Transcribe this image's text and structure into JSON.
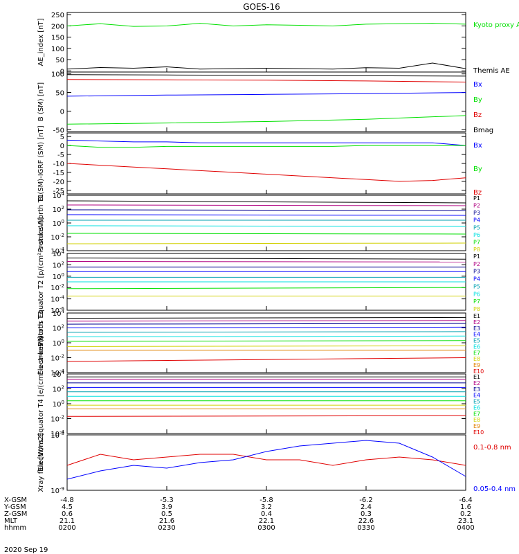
{
  "title": "GOES-16",
  "date": "2020 Sep 19",
  "colors": {
    "black": "#000000",
    "blue": "#0000ff",
    "green": "#00e000",
    "red": "#e00000",
    "navy": "#000090",
    "teal": "#00a0b0",
    "cyan": "#00e0e0",
    "lime": "#00e000",
    "yellow": "#d0d000",
    "orange": "#e08000",
    "darkred": "#b00000",
    "magenta": "#b00080"
  },
  "ephemeris": {
    "rows": [
      {
        "label": "X-GSM",
        "values": [
          "-4.8",
          "-5.3",
          "-5.8",
          "-6.2",
          "-6.4"
        ]
      },
      {
        "label": "Y-GSM",
        "values": [
          "4.5",
          "3.9",
          "3.2",
          "2.4",
          "1.6"
        ]
      },
      {
        "label": "Z-GSM",
        "values": [
          "0.6",
          "0.5",
          "0.4",
          "0.3",
          "0.2"
        ]
      },
      {
        "label": "MLT",
        "values": [
          "21.1",
          "21.6",
          "22.1",
          "22.6",
          "23.1"
        ]
      },
      {
        "label": "hhmm",
        "values": [
          "0200",
          "0230",
          "0300",
          "0330",
          "0400"
        ]
      }
    ]
  },
  "chart_data": [
    {
      "type": "line",
      "ylabel": "AE_index [nT]",
      "ylim": [
        -5,
        260
      ],
      "scale": "linear",
      "yticks": [
        "250",
        "200",
        "150",
        "100",
        "50",
        "0"
      ],
      "x": [
        0,
        10,
        20,
        30,
        40,
        50,
        60,
        70,
        80,
        90,
        100,
        110,
        120
      ],
      "series": [
        {
          "name": "Kyoto proxy AE",
          "color": "#00e000",
          "values": [
            200,
            210,
            198,
            200,
            212,
            200,
            205,
            203,
            200,
            208,
            210,
            212,
            208
          ]
        },
        {
          "name": "Themis AE",
          "color": "#000000",
          "values": [
            8,
            15,
            12,
            18,
            8,
            10,
            12,
            10,
            8,
            14,
            12,
            35,
            10
          ]
        }
      ]
    },
    {
      "type": "line",
      "ylabel": "B (SM) [nT]",
      "ylim": [
        -55,
        105
      ],
      "scale": "linear",
      "yticks": [
        "100",
        "50",
        "0",
        "-50"
      ],
      "x": [
        0,
        30,
        60,
        90,
        120
      ],
      "series": [
        {
          "name": "Bx",
          "color": "#0000ff",
          "values": [
            40,
            43,
            45,
            47,
            50
          ]
        },
        {
          "name": "By",
          "color": "#00e000",
          "values": [
            -35,
            -32,
            -28,
            -22,
            -12
          ]
        },
        {
          "name": "Bz",
          "color": "#e00000",
          "values": [
            85,
            84,
            83,
            81,
            78
          ]
        },
        {
          "name": "Bmag",
          "color": "#000000",
          "values": [
            98,
            97,
            96,
            95,
            94
          ]
        }
      ]
    },
    {
      "type": "line",
      "ylabel": "B (SM)-IGRF (SM) [nT]",
      "ylim": [
        -27,
        7
      ],
      "scale": "linear",
      "yticks": [
        "5",
        "0",
        "-5",
        "-10",
        "-15",
        "-20",
        "-25"
      ],
      "x": [
        0,
        10,
        20,
        30,
        40,
        50,
        60,
        70,
        80,
        90,
        100,
        110,
        120
      ],
      "series": [
        {
          "name": "Bx",
          "color": "#0000ff",
          "values": [
            3,
            2.5,
            2,
            2,
            1.5,
            1.5,
            1.5,
            1.5,
            1.5,
            1.5,
            1.5,
            1.5,
            0
          ]
        },
        {
          "name": "By",
          "color": "#00e000",
          "values": [
            0,
            -1,
            -1,
            -0.5,
            -0.5,
            -0.5,
            -0.5,
            -0.5,
            -0.5,
            0,
            0,
            0,
            0
          ]
        },
        {
          "name": "Bz",
          "color": "#e00000",
          "values": [
            -10,
            -11,
            -12,
            -13,
            -14,
            -15,
            -16,
            -17,
            -18,
            -19,
            -20,
            -19.5,
            -18
          ]
        }
      ]
    },
    {
      "type": "line",
      "ylabel": "Protons North T1",
      "ylim": [
        -4,
        4
      ],
      "scale": "log10",
      "yticks": [
        "10^4",
        "10^2",
        "10^0",
        "10^-2",
        "10^-4"
      ],
      "x": [
        0,
        120
      ],
      "series": [
        {
          "name": "P1",
          "color": "#000000",
          "values": [
            3.2,
            2.9
          ]
        },
        {
          "name": "P2",
          "color": "#b00080",
          "values": [
            2.6,
            2.5
          ]
        },
        {
          "name": "P3",
          "color": "#000090",
          "values": [
            1.9,
            1.8
          ]
        },
        {
          "name": "P4",
          "color": "#0000ff",
          "values": [
            1.2,
            1.1
          ]
        },
        {
          "name": "P5",
          "color": "#00a0b0",
          "values": [
            0.4,
            0.4
          ]
        },
        {
          "name": "P6",
          "color": "#00e0e0",
          "values": [
            -0.4,
            -0.5
          ]
        },
        {
          "name": "P7",
          "color": "#00e000",
          "values": [
            -1.5,
            -1.6
          ]
        },
        {
          "name": "P8",
          "color": "#d0d000",
          "values": [
            -3.0,
            -2.9
          ]
        }
      ]
    },
    {
      "type": "line",
      "ylabel": "Protons Equator T2 [p/(cm²-s-sr-keV)]",
      "ylim": [
        -6,
        4
      ],
      "scale": "log10",
      "yticks": [
        "10^4",
        "10^2",
        "10^0",
        "10^-2",
        "10^-4",
        "10^-6"
      ],
      "x": [
        0,
        120
      ],
      "series": [
        {
          "name": "P1",
          "color": "#000000",
          "values": [
            3.2,
            3.0
          ]
        },
        {
          "name": "P2",
          "color": "#b00080",
          "values": [
            2.6,
            2.5
          ]
        },
        {
          "name": "P3",
          "color": "#000090",
          "values": [
            1.6,
            1.6
          ]
        },
        {
          "name": "P4",
          "color": "#0000ff",
          "values": [
            0.8,
            0.8
          ]
        },
        {
          "name": "P5",
          "color": "#00a0b0",
          "values": [
            -0.2,
            -0.2
          ]
        },
        {
          "name": "P6",
          "color": "#00e0e0",
          "values": [
            -1.0,
            -1.0
          ]
        },
        {
          "name": "P7",
          "color": "#00e000",
          "values": [
            -2.2,
            -2.0
          ]
        },
        {
          "name": "P8",
          "color": "#d0d000",
          "values": [
            -3.5,
            -3.5
          ]
        }
      ]
    },
    {
      "type": "line",
      "ylabel": "Electrons North T3",
      "ylim": [
        -4,
        4
      ],
      "scale": "log10",
      "yticks": [
        "10^4",
        "10^2",
        "10^0",
        "10^-2",
        "10^-4"
      ],
      "x": [
        0,
        120
      ],
      "series": [
        {
          "name": "E1",
          "color": "#000000",
          "values": [
            3.3,
            3.4
          ]
        },
        {
          "name": "E2",
          "color": "#b00080",
          "values": [
            2.9,
            3.0
          ]
        },
        {
          "name": "E3",
          "color": "#000090",
          "values": [
            2.5,
            2.6
          ]
        },
        {
          "name": "E4",
          "color": "#0000ff",
          "values": [
            2.0,
            2.1
          ]
        },
        {
          "name": "E5",
          "color": "#00a0b0",
          "values": [
            1.4,
            1.5
          ]
        },
        {
          "name": "E6",
          "color": "#00e0e0",
          "values": [
            0.8,
            0.9
          ]
        },
        {
          "name": "E7",
          "color": "#00e000",
          "values": [
            0.2,
            0.3
          ]
        },
        {
          "name": "E8",
          "color": "#d0d000",
          "values": [
            -0.5,
            -0.4
          ]
        },
        {
          "name": "E9",
          "color": "#e08000",
          "values": [
            -1.0,
            -1.0
          ]
        },
        {
          "name": "E10",
          "color": "#e00000",
          "values": [
            -2.5,
            -2.0
          ]
        }
      ]
    },
    {
      "type": "line",
      "ylabel": "Electrons Equator T4 [e/(cm²-s-sr-keV)]",
      "ylim": [
        -4,
        4
      ],
      "scale": "log10",
      "yticks": [
        "10^4",
        "10^2",
        "10^0",
        "10^-2",
        "10^-4"
      ],
      "x": [
        0,
        120
      ],
      "series": [
        {
          "name": "E1",
          "color": "#000000",
          "values": [
            3.6,
            3.6
          ]
        },
        {
          "name": "E2",
          "color": "#b00080",
          "values": [
            3.3,
            3.3
          ]
        },
        {
          "name": "E3",
          "color": "#000090",
          "values": [
            2.8,
            2.8
          ]
        },
        {
          "name": "E4",
          "color": "#0000ff",
          "values": [
            2.2,
            2.2
          ]
        },
        {
          "name": "E5",
          "color": "#00a0b0",
          "values": [
            1.6,
            1.6
          ]
        },
        {
          "name": "E6",
          "color": "#00e0e0",
          "values": [
            1.0,
            1.0
          ]
        },
        {
          "name": "E7",
          "color": "#00e000",
          "values": [
            0.4,
            0.4
          ]
        },
        {
          "name": "E8",
          "color": "#d0d000",
          "values": [
            -0.2,
            -0.2
          ]
        },
        {
          "name": "E9",
          "color": "#e08000",
          "values": [
            -0.7,
            -0.7
          ]
        },
        {
          "name": "E10",
          "color": "#e00000",
          "values": [
            -1.7,
            -1.6
          ]
        }
      ]
    },
    {
      "type": "line",
      "ylabel": "Xray flux [W/m2]",
      "ylim": [
        -9,
        -8
      ],
      "scale": "log10",
      "yticks": [
        "10^-8",
        "10^-9"
      ],
      "x": [
        0,
        10,
        20,
        30,
        40,
        50,
        60,
        70,
        80,
        90,
        100,
        110,
        120
      ],
      "series": [
        {
          "name": "0.1-0.8 nm",
          "color": "#e00000",
          "values": [
            -8.55,
            -8.35,
            -8.45,
            -8.4,
            -8.35,
            -8.35,
            -8.45,
            -8.45,
            -8.55,
            -8.45,
            -8.4,
            -8.45,
            -8.55
          ]
        },
        {
          "name": "0.05-0.4 nm",
          "color": "#0000ff",
          "values": [
            -8.8,
            -8.65,
            -8.55,
            -8.6,
            -8.5,
            -8.45,
            -8.3,
            -8.2,
            -8.15,
            -8.1,
            -8.15,
            -8.4,
            -8.75
          ]
        }
      ]
    }
  ]
}
